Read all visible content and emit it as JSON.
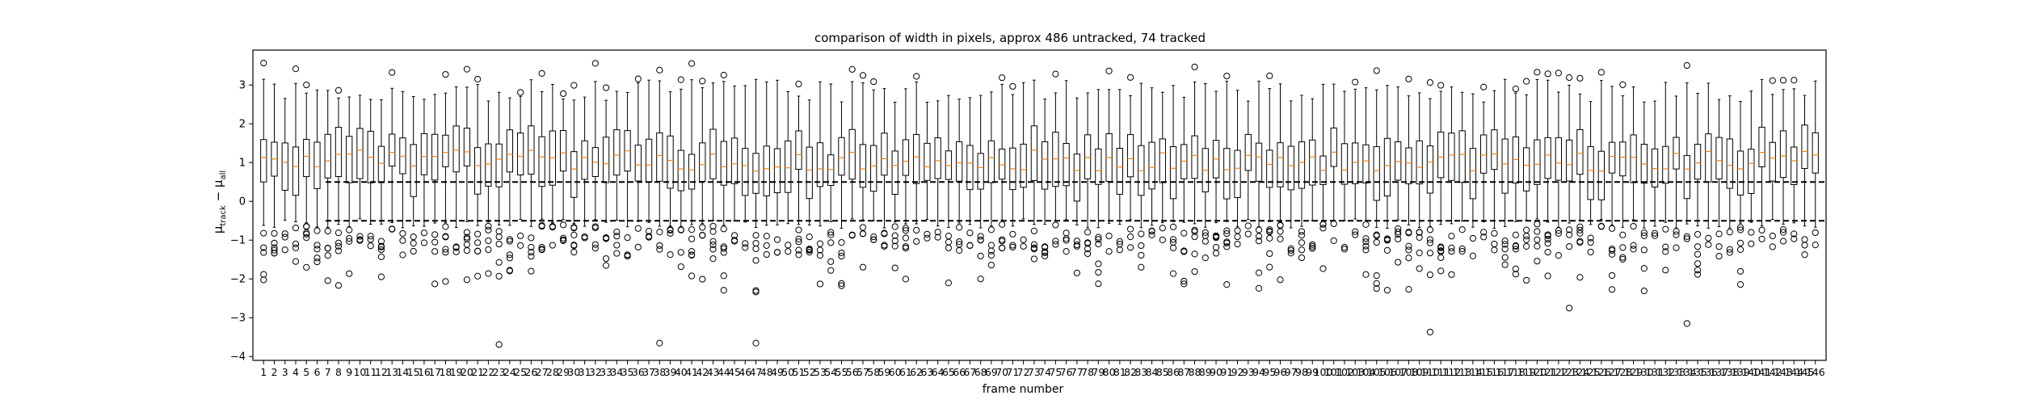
{
  "chart_data": {
    "type": "box",
    "title": "comparison of width in pixels, approx 486 untracked, 74 tracked",
    "xlabel": "frame number",
    "ylabel": "μ_track − μ_all",
    "ylim": [
      -4.1,
      3.9
    ],
    "yticks": [
      -4,
      -3,
      -2,
      -1,
      0,
      1,
      2,
      3
    ],
    "reference_lines": [
      0.5,
      -0.5
    ],
    "n_boxes": 146,
    "categories": [],
    "box_colors": {
      "box": "#000000",
      "median": "#ff7f0e",
      "reference": "#000000"
    }
  }
}
